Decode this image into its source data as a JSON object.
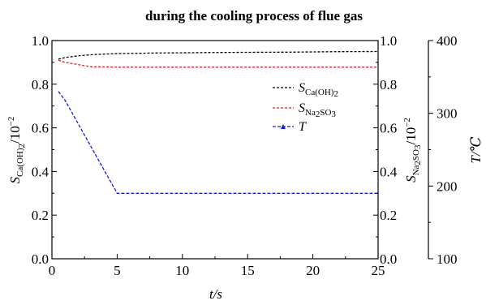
{
  "chart_data": {
    "type": "line",
    "title": "during the cooling process of flue gas",
    "x": [
      0.5,
      1,
      2,
      3,
      4,
      5,
      6,
      7,
      8,
      10,
      12,
      15,
      18,
      20,
      22,
      25
    ],
    "xlim": [
      0,
      25
    ],
    "xticks": [
      "0",
      "5",
      "10",
      "15",
      "20",
      "25"
    ],
    "xlabel": "t/s",
    "left_axis": {
      "ylim": [
        0.0,
        1.0
      ],
      "ticks": [
        "0.0",
        "0.2",
        "0.4",
        "0.6",
        "0.8",
        "1.0"
      ],
      "label_main": "S",
      "label_sub": "Ca(OH)",
      "label_subsub": "2",
      "label_tail": "/10",
      "label_sup": "−2"
    },
    "inner_right_axis": {
      "ylim": [
        0.0,
        1.0
      ],
      "ticks": [
        "0.0",
        "0.2",
        "0.4",
        "0.6",
        "0.8",
        "1.0"
      ],
      "label_main": "S",
      "label_sub": "Na",
      "label_sub2": "2",
      "label_sub3": "SO",
      "label_sub4": "3",
      "label_tail": "/10",
      "label_sup": "−2"
    },
    "outer_right_axis": {
      "ylim": [
        100,
        400
      ],
      "ticks": [
        "100",
        "200",
        "300",
        "400"
      ],
      "label": "T/℃"
    },
    "series": [
      {
        "name": "S_Ca(OH)2",
        "color": "#000000",
        "axis": "left",
        "values": [
          0.915,
          0.922,
          0.93,
          0.935,
          0.938,
          0.94,
          0.941,
          0.942,
          0.943,
          0.944,
          0.945,
          0.946,
          0.947,
          0.948,
          0.949,
          0.95
        ]
      },
      {
        "name": "S_Na2SO3",
        "color": "#e02020",
        "axis": "inner_right",
        "values": [
          0.91,
          0.9,
          0.89,
          0.88,
          0.879,
          0.878,
          0.878,
          0.878,
          0.878,
          0.878,
          0.878,
          0.878,
          0.878,
          0.878,
          0.878,
          0.878
        ]
      },
      {
        "name": "T",
        "color": "#1a1adb",
        "axis": "outer_right",
        "values": [
          330,
          318,
          286,
          254,
          222,
          190,
          190,
          190,
          190,
          190,
          190,
          190,
          190,
          190,
          190,
          190
        ]
      }
    ],
    "legend": {
      "position": "right",
      "entries": [
        {
          "main": "S",
          "sub": "Ca(OH)",
          "subsub": "2"
        },
        {
          "main": "S",
          "sub": "Na",
          "subsub": "2",
          "sub2": "SO",
          "subsub2": "3"
        },
        {
          "main": "T"
        }
      ]
    }
  }
}
